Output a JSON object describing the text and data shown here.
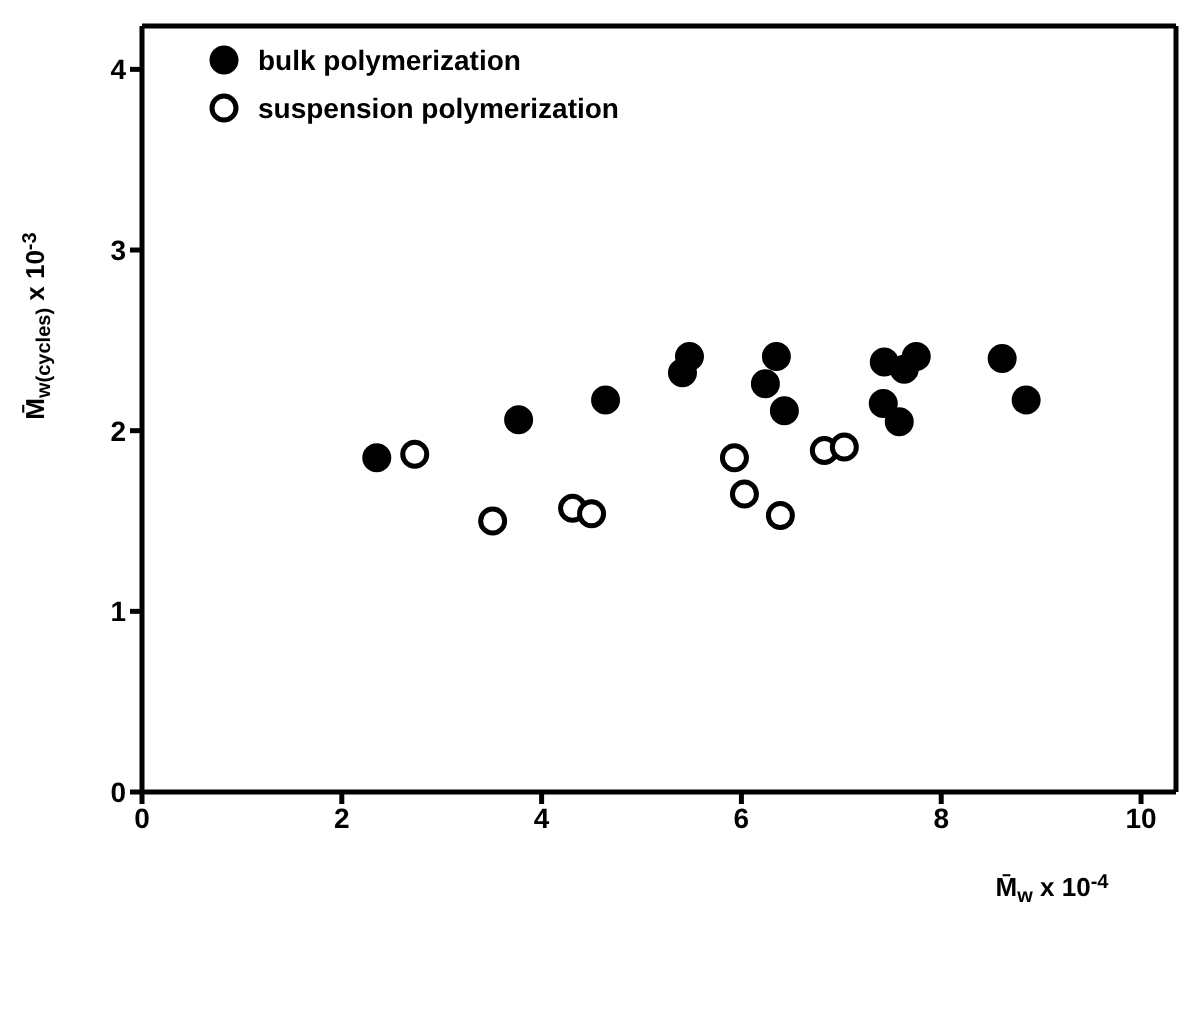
{
  "chart_data": {
    "type": "scatter",
    "xlabel": "M̄$_{w}$ x 10$^{-4}$",
    "ylabel": "M̄$_{w(cycles)}$ x 10$^{-3}$",
    "xlim": [
      0,
      10.35
    ],
    "ylim": [
      0,
      4.24
    ],
    "xticks": [
      0,
      2,
      4,
      6,
      8,
      10
    ],
    "yticks": [
      0,
      1,
      2,
      3,
      4
    ],
    "grid": false,
    "legend": "top left",
    "marker": "circle",
    "series": [
      {
        "name": "bulk polymerization",
        "color": "#000000",
        "x": [
          2.35,
          3.77,
          4.64,
          5.48,
          5.41,
          6.35,
          6.24,
          6.43,
          7.43,
          7.63,
          7.75,
          7.42,
          7.58,
          8.61,
          8.85
        ],
        "values": [
          1.85,
          2.06,
          2.17,
          2.41,
          2.32,
          2.41,
          2.26,
          2.11,
          2.38,
          2.34,
          2.41,
          2.15,
          2.05,
          2.4,
          2.17
        ]
      },
      {
        "name": "suspension polymerization",
        "color": "#ffffff",
        "x": [
          2.73,
          3.51,
          4.31,
          4.5,
          5.93,
          6.03,
          6.39,
          6.83,
          7.03
        ],
        "values": [
          1.87,
          1.5,
          1.57,
          1.54,
          1.85,
          1.65,
          1.53,
          1.89,
          1.91
        ]
      }
    ]
  }
}
